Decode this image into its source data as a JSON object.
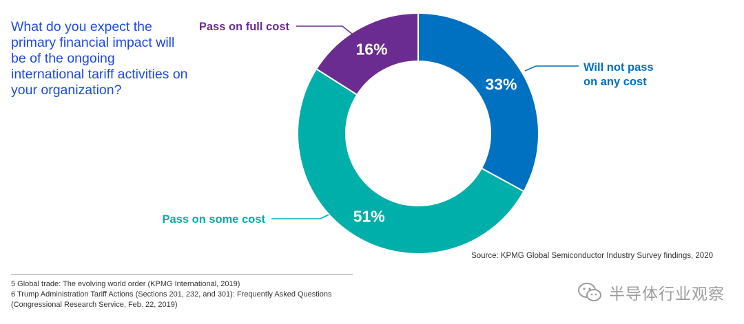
{
  "question": "What do you expect the primary financial impact will be of the ongoing international tariff activities on your organization?",
  "chart_data": {
    "type": "pie",
    "donut": true,
    "labels": [
      "Will not pass on any cost",
      "Pass on some cost",
      "Pass on full cost"
    ],
    "values": [
      33,
      51,
      16
    ],
    "value_labels": [
      "33%",
      "51%",
      "16%"
    ],
    "colors": [
      "#0070c0",
      "#00aeaa",
      "#6b2c91"
    ],
    "start": "12 o'clock, clockwise"
  },
  "callouts": {
    "will_not_pass_line1": "Will not pass",
    "will_not_pass_line2": "on any cost",
    "pass_some": "Pass on some cost",
    "pass_full": "Pass on full cost"
  },
  "source": "Source: KPMG Global Semiconductor Industry Survey findings, 2020",
  "footnotes": [
    "5 Global trade: The evolving world order (KPMG International, 2019)",
    "6 Trump Administration Tariff Actions (Sections 201, 232, and 301): Frequently Asked Questions",
    "(Congressional Research Service, Feb. 22, 2019)"
  ],
  "watermark": {
    "text": "半导体行业观察",
    "icon": "wechat-icon"
  }
}
